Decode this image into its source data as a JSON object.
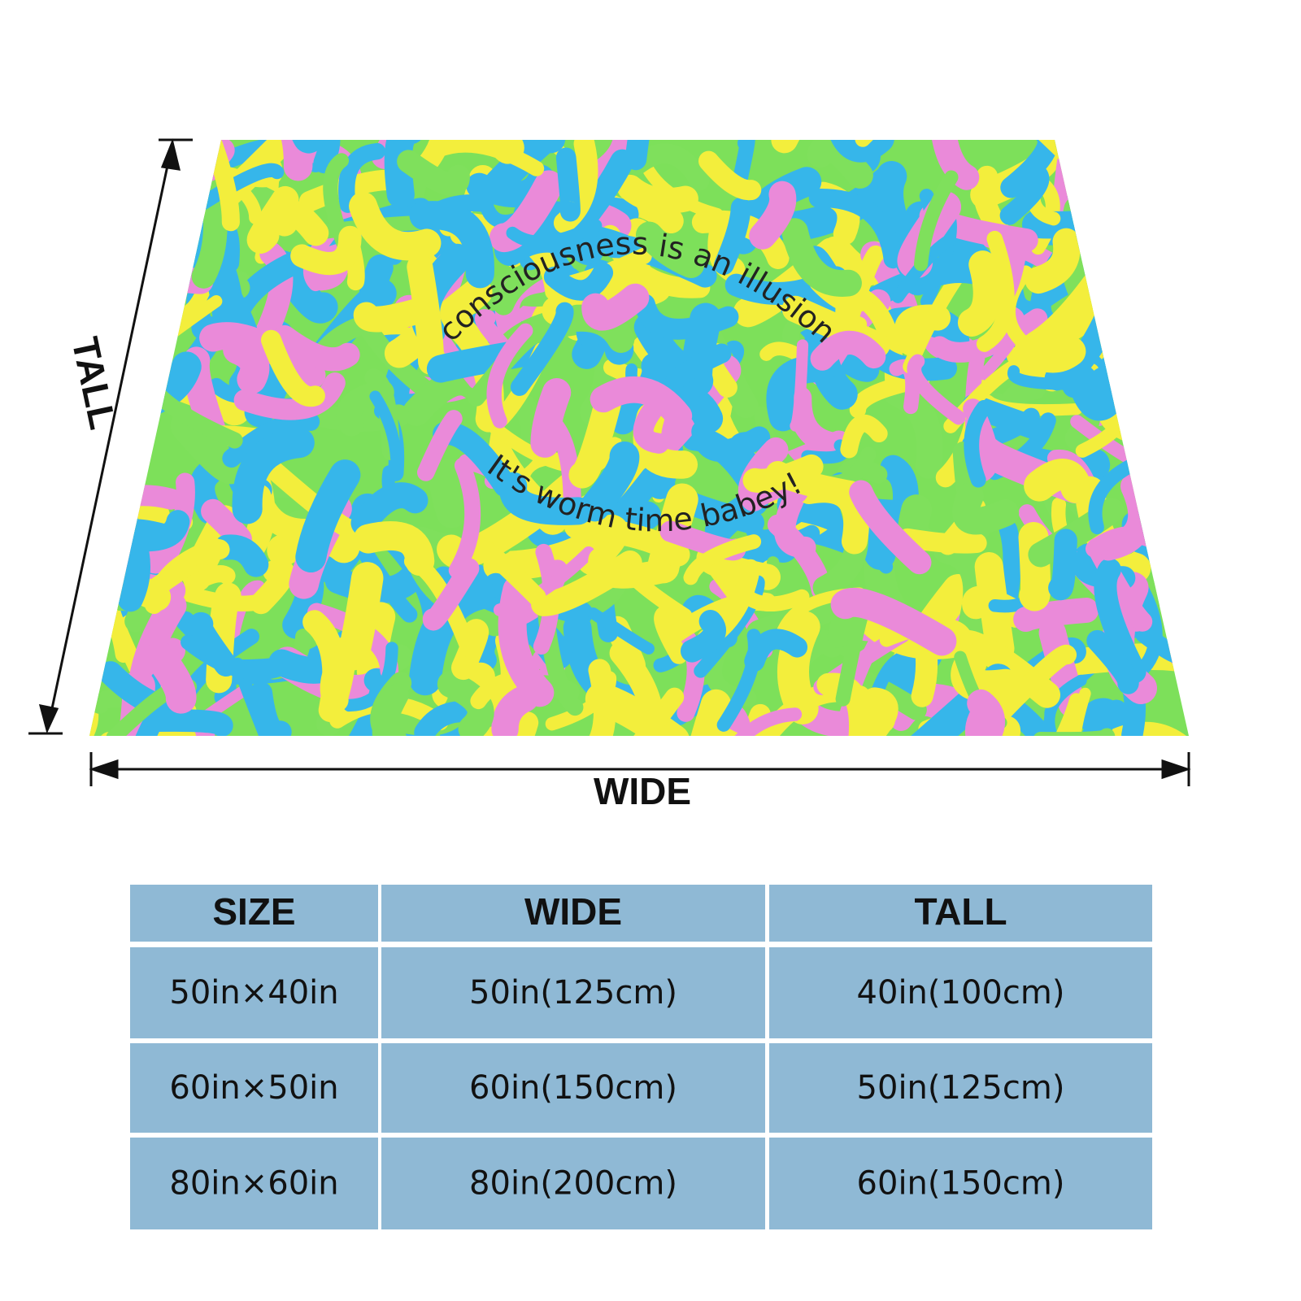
{
  "blanket": {
    "text_top": "consciousness is an illusion",
    "text_bottom": "It's worm time babey!"
  },
  "dimensions": {
    "tall": "TALL",
    "wide": "WIDE"
  },
  "table": {
    "header": [
      "SIZE",
      "WIDE",
      "TALL"
    ],
    "rows": [
      [
        "50in×40in",
        "50in(125cm)",
        "40in(100cm)"
      ],
      [
        "60in×50in",
        "60in(150cm)",
        "50in(125cm)"
      ],
      [
        "80in×60in",
        "80in(200cm)",
        "60in(150cm)"
      ]
    ]
  }
}
